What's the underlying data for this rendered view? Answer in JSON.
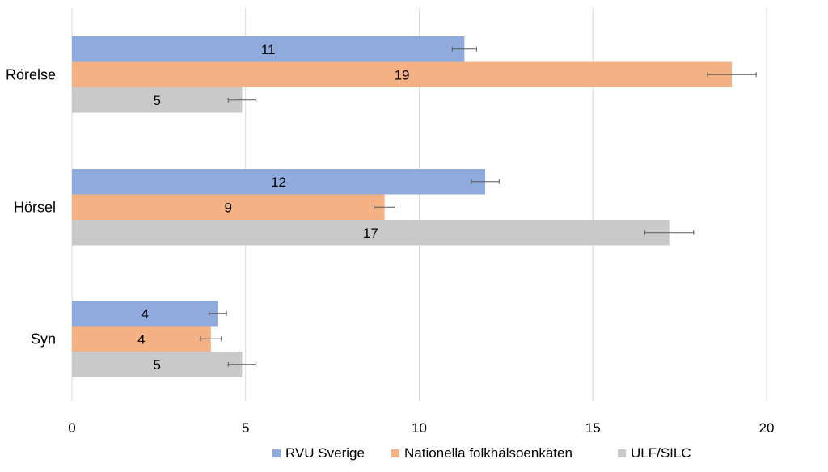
{
  "chart_data": {
    "type": "bar",
    "orientation": "horizontal",
    "title": "",
    "xlabel": "",
    "ylabel": "",
    "xlim": [
      0,
      20
    ],
    "x_ticks": [
      "0",
      "5",
      "10",
      "15",
      "20"
    ],
    "grid": true,
    "legend_position": "bottom",
    "categories": [
      "Rörelse",
      "Hörsel",
      "Syn"
    ],
    "series": [
      {
        "name": "RVU Sverige",
        "color": "#8faadc",
        "values": [
          11.3,
          11.9,
          4.2
        ],
        "labels": [
          "11",
          "12",
          "4"
        ],
        "error": [
          0.35,
          0.4,
          0.25
        ]
      },
      {
        "name": "Nationella folkhälsoenkäten",
        "color": "#f4b183",
        "values": [
          19.0,
          9.0,
          4.0
        ],
        "labels": [
          "19",
          "9",
          "4"
        ],
        "error": [
          0.7,
          0.3,
          0.3
        ]
      },
      {
        "name": "ULF/SILC",
        "color": "#c9c9c9",
        "values": [
          4.9,
          17.2,
          4.9
        ],
        "labels": [
          "5",
          "17",
          "5"
        ],
        "error": [
          0.4,
          0.7,
          0.4
        ]
      }
    ]
  }
}
